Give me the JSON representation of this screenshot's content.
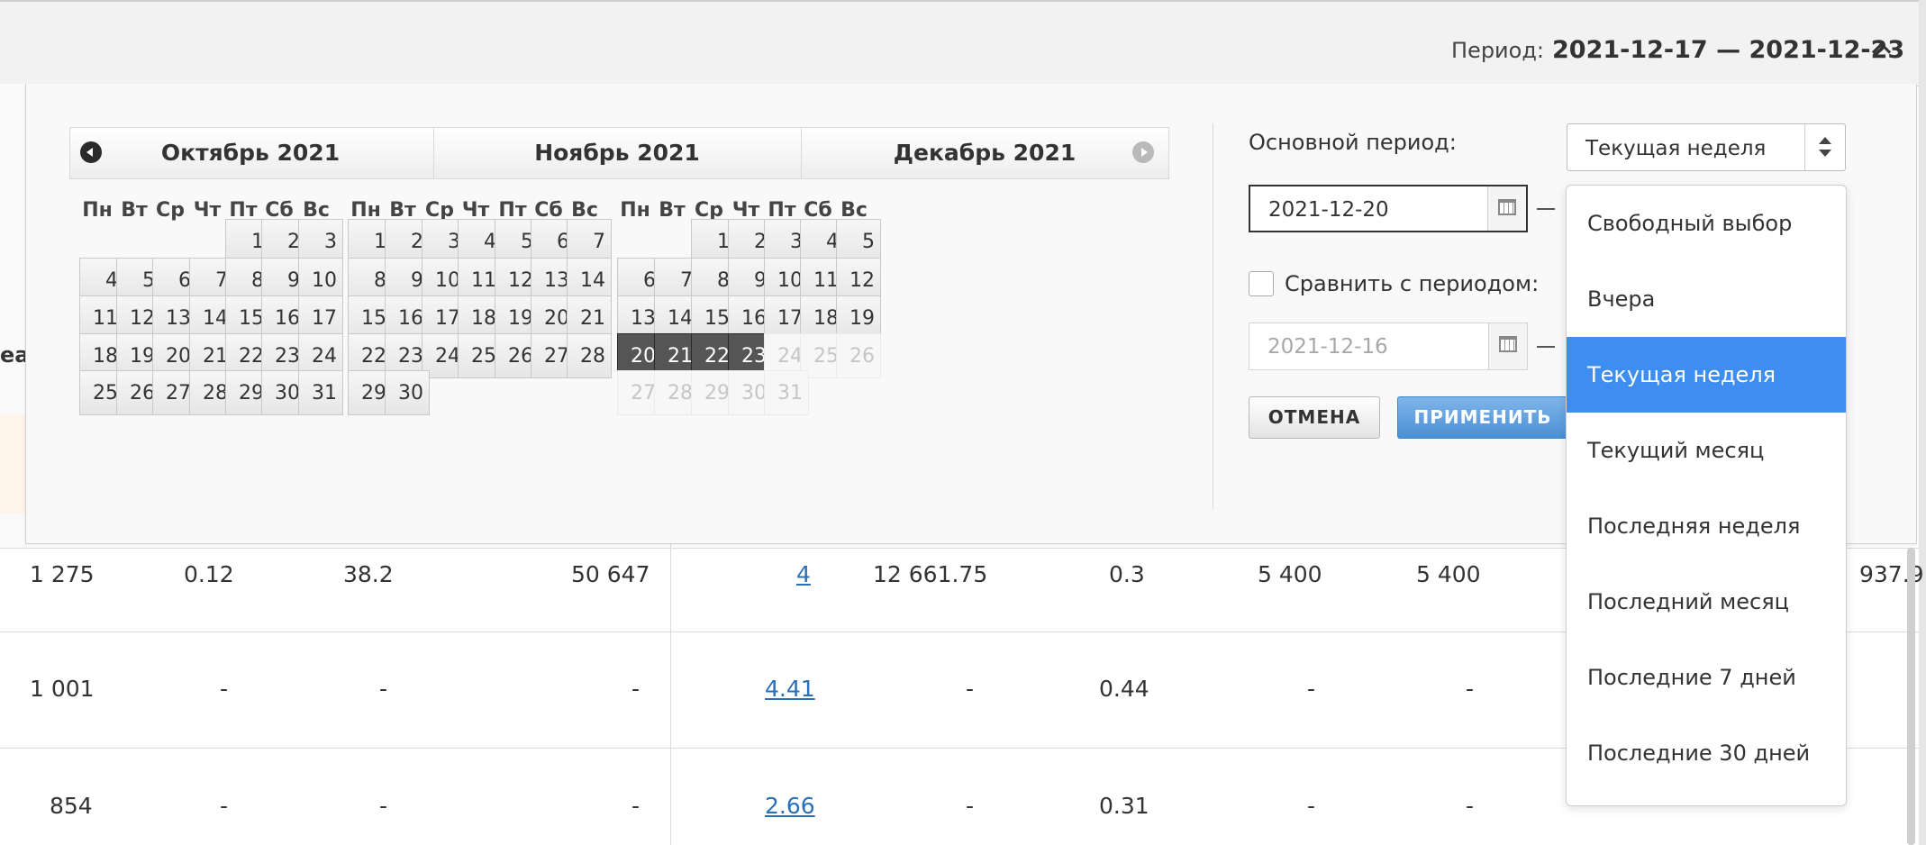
{
  "header": {
    "period_label": "Период:",
    "period_value": "2021-12-17 — 2021-12-23"
  },
  "background": {
    "left_cut_text": "еан",
    "rows": [
      {
        "c1": "1 275",
        "c2": "0.12",
        "c3": "38.2",
        "c4": "50 647",
        "c5": "4",
        "c6": "12 661.75",
        "c7": "0.3",
        "c8": "5 400",
        "c9": "5 400",
        "c10": "-",
        "c11": "937.9"
      },
      {
        "c1": "1 001",
        "c2": "-",
        "c3": "-",
        "c4": "-",
        "c5": "4.41",
        "c6": "-",
        "c7": "0.44",
        "c8": "-",
        "c9": "-",
        "c10": "-",
        "c11": "-"
      },
      {
        "c1": "854",
        "c2": "-",
        "c3": "-",
        "c4": "-",
        "c5": "2.66",
        "c6": "-",
        "c7": "0.31",
        "c8": "-",
        "c9": "-",
        "c10": "-",
        "c11": "-"
      }
    ]
  },
  "calendar": {
    "weekdays": [
      "Пн",
      "Вт",
      "Ср",
      "Чт",
      "Пт",
      "Сб",
      "Вс"
    ],
    "months": [
      {
        "title": "Октябрь 2021",
        "first_weekday": 4,
        "days": 31
      },
      {
        "title": "Ноябрь 2021",
        "first_weekday": 0,
        "days": 30
      },
      {
        "title": "Декабрь 2021",
        "first_weekday": 2,
        "days": 31,
        "selected": [
          20,
          21,
          22,
          23
        ],
        "disabled_from": 24
      }
    ]
  },
  "controls": {
    "main_period_label": "Основной период:",
    "select_value": "Текущая неделя",
    "date_from": "2021-12-20",
    "compare_label": "Сравнить с периодом:",
    "compare_date": "2021-12-16",
    "cancel_label": "ОТМЕНА",
    "apply_label": "ПРИМЕНИТЬ"
  },
  "dropdown": {
    "options": [
      "Свободный выбор",
      "Вчера",
      "Текущая неделя",
      "Текущий месяц",
      "Последняя неделя",
      "Последний месяц",
      "Последние 7 дней",
      "Последние 30 дней"
    ],
    "selected": "Текущая неделя"
  }
}
